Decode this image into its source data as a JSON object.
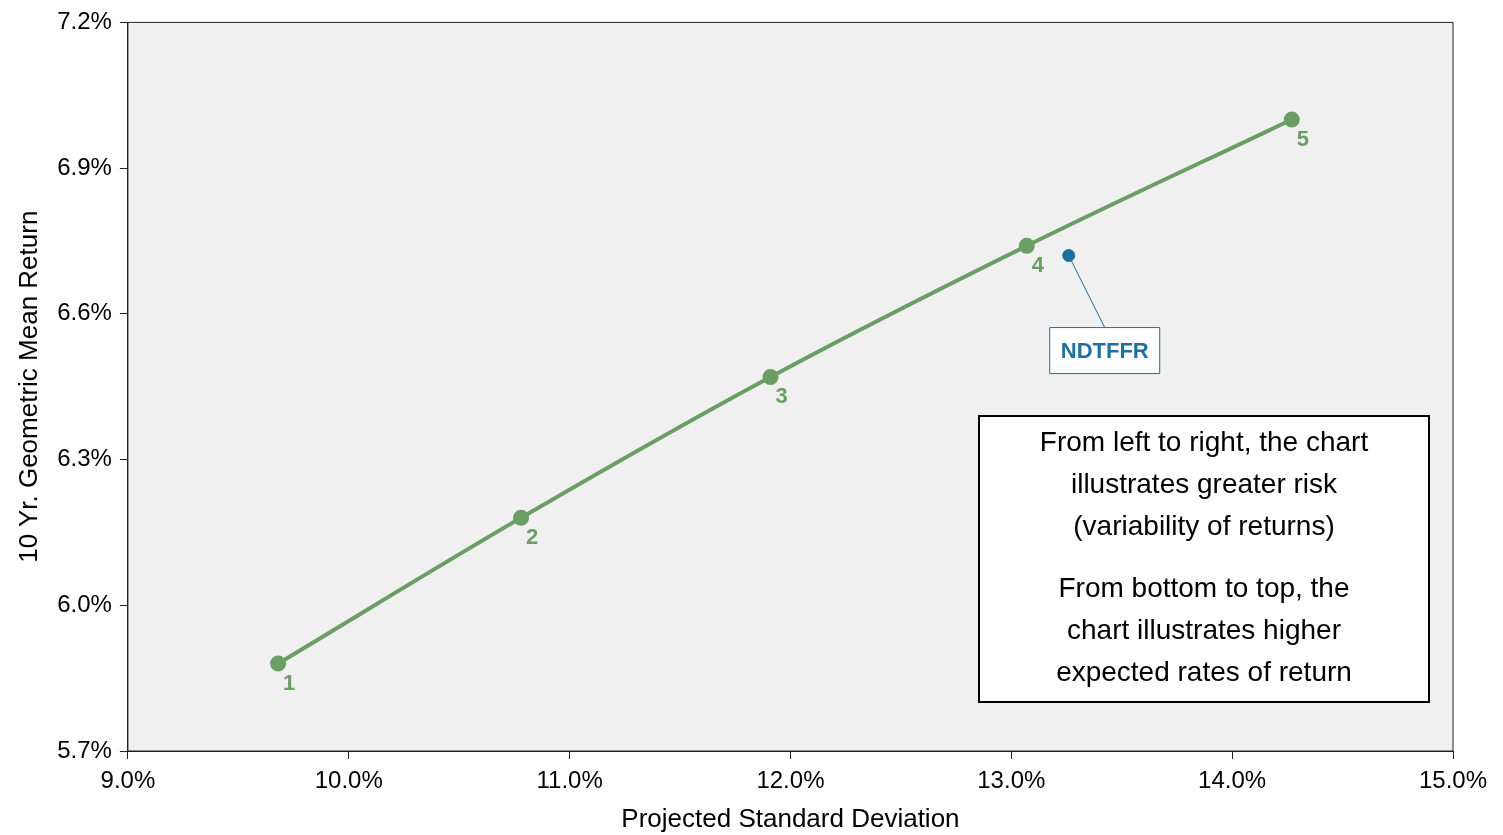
{
  "chart_data": {
    "type": "line",
    "xlabel": "Projected Standard Deviation",
    "ylabel": "10 Yr. Geometric Mean Return",
    "xlim": [
      9,
      15
    ],
    "xticks": [
      {
        "value": 9,
        "label": "9.0%"
      },
      {
        "value": 10,
        "label": "10.0%"
      },
      {
        "value": 11,
        "label": "11.0%"
      },
      {
        "value": 12,
        "label": "12.0%"
      },
      {
        "value": 13,
        "label": "13.0%"
      },
      {
        "value": 14,
        "label": "14.0%"
      },
      {
        "value": 15,
        "label": "15.0%"
      }
    ],
    "ylim": [
      5.7,
      7.2
    ],
    "yticks": [
      {
        "value": 5.7,
        "label": "5.7%"
      },
      {
        "value": 6,
        "label": "6.0%"
      },
      {
        "value": 6.3,
        "label": "6.3%"
      },
      {
        "value": 6.6,
        "label": "6.6%"
      },
      {
        "value": 6.9,
        "label": "6.9%"
      },
      {
        "value": 7.2,
        "label": "7.2%"
      }
    ],
    "series": [
      {
        "color": "#6a9e64",
        "x": [
          9.68,
          10.78,
          11.91,
          13.07,
          14.27
        ],
        "values": [
          5.88,
          6.18,
          6.47,
          6.74,
          7.0
        ]
      },
      {
        "type": "scatter",
        "name": "NDTFFR",
        "color": "#1f6fa0",
        "x": [
          13.26
        ],
        "values": [
          6.72
        ]
      }
    ],
    "annotations": [
      {
        "text": "1",
        "x": 9.68,
        "y": 5.88
      },
      {
        "text": "2",
        "x": 10.78,
        "y": 6.18
      },
      {
        "text": "3",
        "x": 11.91,
        "y": 6.47
      },
      {
        "text": "4",
        "x": 13.07,
        "y": 6.74
      },
      {
        "text": "5",
        "x": 14.27,
        "y": 7.0
      },
      "From left to right, the chart illustrates greater risk (variability of returns)",
      "From bottom to top, the chart illustrates higher expected rates of return"
    ],
    "marker": "circle",
    "grid": false,
    "legend": false
  }
}
